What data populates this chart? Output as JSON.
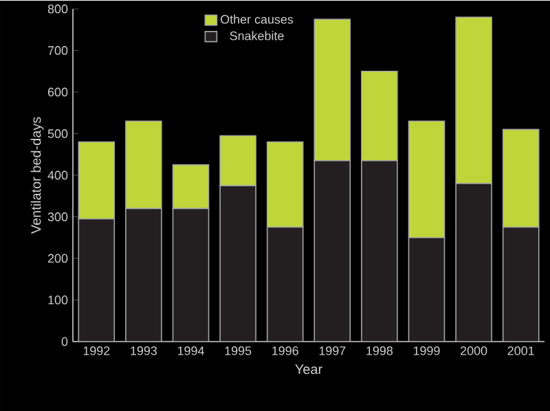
{
  "chart_data": {
    "type": "bar",
    "stacked": true,
    "xlabel": "Year",
    "ylabel": "Ventilator bed-days",
    "categories": [
      "1992",
      "1993",
      "1994",
      "1995",
      "1996",
      "1997",
      "1998",
      "1999",
      "2000",
      "2001"
    ],
    "series": [
      {
        "name": "Snakebite",
        "color": "#231f20",
        "values": [
          295,
          320,
          320,
          375,
          275,
          435,
          435,
          250,
          380,
          275
        ]
      },
      {
        "name": "Other causes",
        "color": "#bfd63a",
        "values": [
          185,
          210,
          105,
          120,
          205,
          340,
          215,
          280,
          400,
          235
        ]
      }
    ],
    "ylim": [
      0,
      800
    ],
    "yticks": [
      0,
      100,
      200,
      300,
      400,
      500,
      600,
      700,
      800
    ],
    "legend": "top left",
    "grid": false
  }
}
